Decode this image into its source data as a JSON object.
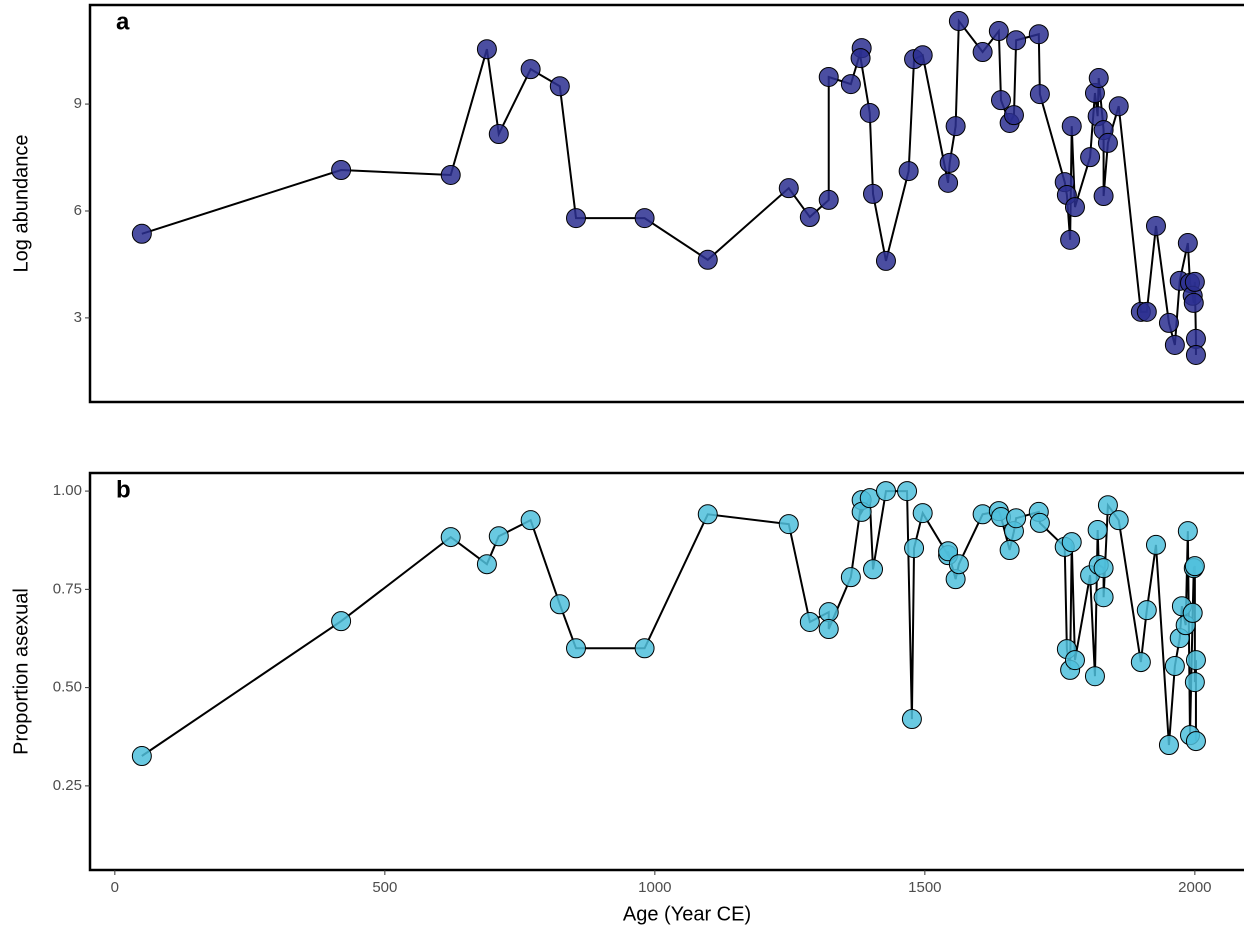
{
  "chart_data": [
    {
      "type": "line",
      "panel_label": "a",
      "y_label": "Log abundance",
      "color": "#2b2f91",
      "line_color": "#000000",
      "xlim": [
        -46,
        2091
      ],
      "ylim": [
        0.64,
        11.78
      ],
      "yticks": [
        3,
        6,
        9
      ],
      "x": [
        50,
        419,
        622,
        689,
        711,
        770,
        824,
        854,
        981,
        1098,
        1248,
        1287,
        1322,
        1322,
        1363,
        1383,
        1381,
        1398,
        1404,
        1428,
        1470,
        1480,
        1496,
        1543,
        1546,
        1557,
        1563,
        1607,
        1637,
        1641,
        1657,
        1665,
        1669,
        1711,
        1713,
        1759,
        1763,
        1769,
        1772,
        1778,
        1806,
        1815,
        1820,
        1822,
        1831,
        1831,
        1839,
        1859,
        1900,
        1911,
        1928,
        1952,
        1963,
        1972,
        1987,
        1991,
        1996,
        1998,
        2000,
        2002,
        2002
      ],
      "values": [
        5.36,
        7.15,
        7.01,
        10.54,
        8.16,
        9.98,
        9.5,
        5.8,
        5.8,
        4.63,
        6.64,
        5.83,
        6.31,
        9.76,
        9.56,
        10.57,
        10.29,
        8.75,
        6.48,
        4.6,
        7.12,
        10.26,
        10.37,
        6.79,
        7.35,
        8.38,
        11.33,
        10.46,
        11.05,
        9.11,
        8.47,
        8.69,
        10.79,
        10.96,
        9.28,
        6.81,
        6.45,
        5.19,
        8.38,
        6.11,
        7.51,
        9.31,
        8.66,
        9.73,
        8.27,
        6.42,
        7.91,
        8.94,
        3.17,
        3.17,
        5.58,
        2.86,
        2.24,
        4.04,
        5.1,
        3.98,
        3.62,
        3.42,
        4.01,
        2.41,
        1.96
      ]
    },
    {
      "type": "line",
      "panel_label": "b",
      "y_label": "Proportion asexual",
      "x_label": "Age (Year CE)",
      "color": "#4fc0dc",
      "line_color": "#000000",
      "xlim": [
        -46,
        2091
      ],
      "ylim": [
        0.036,
        1.046
      ],
      "xticks": [
        0,
        500,
        1000,
        1500,
        2000
      ],
      "yticks": [
        0.25,
        {
          "value": 0.5,
          "label": "0.50"
        },
        0.75,
        {
          "value": 1,
          "label": "1.00"
        }
      ],
      "x": [
        50,
        419,
        622,
        689,
        711,
        770,
        824,
        854,
        981,
        1098,
        1248,
        1287,
        1322,
        1322,
        1363,
        1383,
        1383,
        1398,
        1404,
        1428,
        1467,
        1476,
        1480,
        1496,
        1543,
        1543,
        1557,
        1563,
        1607,
        1637,
        1641,
        1657,
        1665,
        1669,
        1711,
        1713,
        1759,
        1763,
        1769,
        1772,
        1778,
        1806,
        1815,
        1820,
        1822,
        1831,
        1831,
        1839,
        1859,
        1900,
        1911,
        1928,
        1952,
        1963,
        1972,
        1976,
        1983,
        1987,
        1991,
        1996,
        1998,
        2000,
        2000,
        2002,
        2002
      ],
      "values": [
        0.326,
        0.669,
        0.883,
        0.814,
        0.885,
        0.926,
        0.712,
        0.6,
        0.6,
        0.941,
        0.916,
        0.667,
        0.692,
        0.649,
        0.781,
        0.977,
        0.947,
        0.982,
        0.801,
        1,
        1,
        0.42,
        0.855,
        0.944,
        0.837,
        0.847,
        0.776,
        0.814,
        0.941,
        0.949,
        0.934,
        0.85,
        0.898,
        0.931,
        0.947,
        0.919,
        0.858,
        0.598,
        0.545,
        0.87,
        0.57,
        0.786,
        0.529,
        0.901,
        0.812,
        0.804,
        0.73,
        0.964,
        0.926,
        0.565,
        0.697,
        0.863,
        0.354,
        0.555,
        0.626,
        0.707,
        0.659,
        0.898,
        0.379,
        0.69,
        0.804,
        0.809,
        0.514,
        0.57,
        0.364
      ]
    }
  ]
}
